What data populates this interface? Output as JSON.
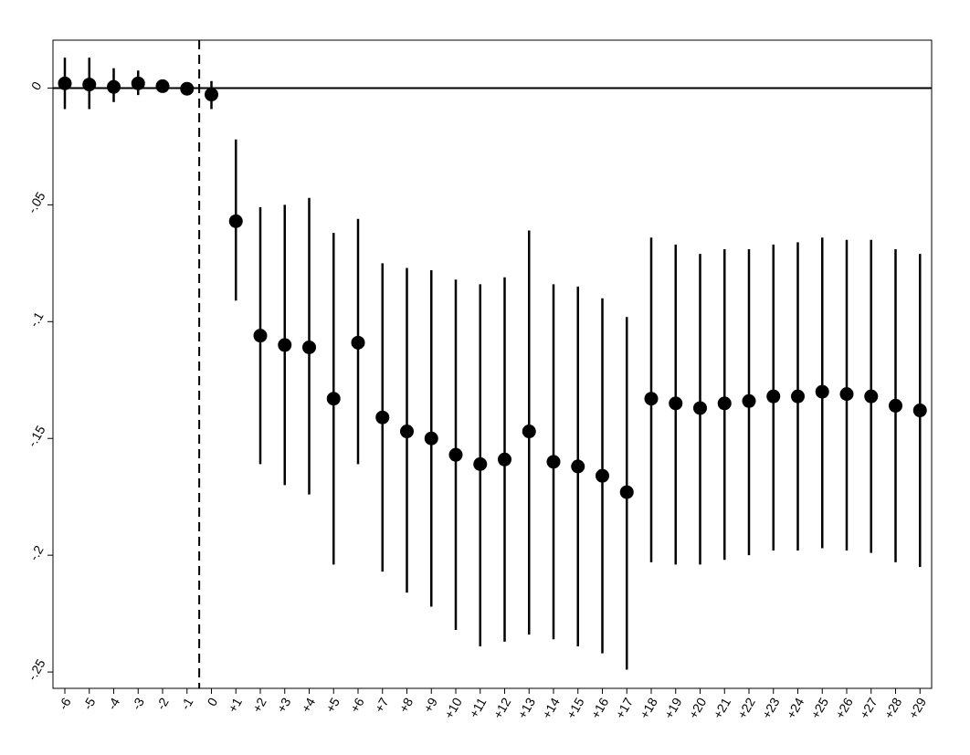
{
  "chart_data": {
    "type": "scatter",
    "subtype": "coefficient-plot-with-confidence-intervals",
    "title": "",
    "xlabel": "",
    "ylabel": "",
    "categories": [
      "-6",
      "-5",
      "-4",
      "-3",
      "-2",
      "-1",
      "0",
      "+1",
      "+2",
      "+3",
      "+4",
      "+5",
      "+6",
      "+7",
      "+8",
      "+9",
      "+10",
      "+11",
      "+12",
      "+13",
      "+14",
      "+15",
      "+16",
      "+17",
      "+18",
      "+19",
      "+20",
      "+21",
      "+22",
      "+23",
      "+24",
      "+25",
      "+26",
      "+27",
      "+28",
      "+29"
    ],
    "estimates": [
      0.002,
      0.0015,
      0.0005,
      0.002,
      0.0008,
      -0.0003,
      -0.0028,
      -0.057,
      -0.106,
      -0.11,
      -0.111,
      -0.133,
      -0.109,
      -0.141,
      -0.147,
      -0.15,
      -0.157,
      -0.161,
      -0.159,
      -0.147,
      -0.16,
      -0.162,
      -0.166,
      -0.173,
      -0.133,
      -0.135,
      -0.137,
      -0.135,
      -0.134,
      -0.132,
      -0.132,
      -0.13,
      -0.131,
      -0.132,
      -0.136,
      -0.138
    ],
    "ci_lower": [
      -0.009,
      -0.009,
      -0.006,
      -0.003,
      null,
      null,
      -0.009,
      -0.091,
      -0.161,
      -0.17,
      -0.174,
      -0.204,
      -0.161,
      -0.207,
      -0.216,
      -0.222,
      -0.232,
      -0.239,
      -0.237,
      -0.234,
      -0.236,
      -0.239,
      -0.242,
      -0.249,
      -0.203,
      -0.204,
      -0.204,
      -0.202,
      -0.2,
      -0.198,
      -0.198,
      -0.197,
      -0.198,
      -0.199,
      -0.203,
      -0.205
    ],
    "ci_upper": [
      0.013,
      0.013,
      0.0085,
      0.0075,
      null,
      null,
      0.003,
      -0.022,
      -0.051,
      -0.05,
      -0.047,
      -0.062,
      -0.056,
      -0.075,
      -0.077,
      -0.078,
      -0.082,
      -0.084,
      -0.081,
      -0.061,
      -0.084,
      -0.085,
      -0.09,
      -0.098,
      -0.064,
      -0.067,
      -0.071,
      -0.069,
      -0.069,
      -0.067,
      -0.066,
      -0.064,
      -0.065,
      -0.065,
      -0.069,
      -0.071
    ],
    "yticks": [
      0,
      -0.05,
      -0.1,
      -0.15,
      -0.2,
      -0.25
    ],
    "ytick_labels": [
      "0",
      "-.05",
      "-.1",
      "-.15",
      "-.2",
      "-.25"
    ],
    "ylim": [
      -0.257,
      0.0205
    ],
    "reference_line_y": 0,
    "event_line_between": [
      "-1",
      "0"
    ],
    "grid": false,
    "legend": "none",
    "colors": {
      "marker": "#000000",
      "line": "#000000",
      "background": "#ffffff"
    }
  }
}
